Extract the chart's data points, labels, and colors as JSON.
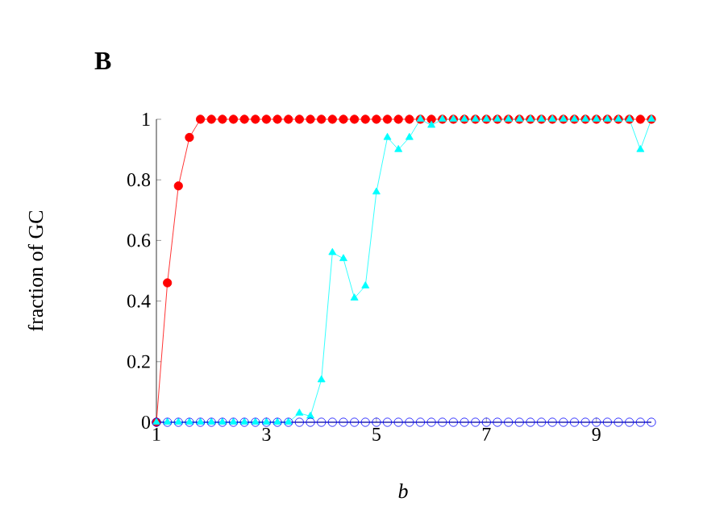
{
  "chart_data": {
    "type": "line",
    "title": "B",
    "xlabel": "b",
    "ylabel": "fraction of GC",
    "x": [
      1,
      1.2,
      1.4,
      1.6,
      1.8,
      2,
      2.2,
      2.4,
      2.6,
      2.8,
      3,
      3.2,
      3.4,
      3.6,
      3.8,
      4,
      4.2,
      4.4,
      4.6,
      4.8,
      5,
      5.2,
      5.4,
      5.6,
      5.8,
      6,
      6.2,
      6.4,
      6.6,
      6.8,
      7,
      7.2,
      7.4,
      7.6,
      7.8,
      8,
      8.2,
      8.4,
      8.6,
      8.8,
      9,
      9.2,
      9.4,
      9.6,
      9.8,
      10
    ],
    "series": [
      {
        "color": "#ff0000",
        "marker": "circle",
        "values": [
          0,
          0.46,
          0.78,
          0.94,
          1,
          1,
          1,
          1,
          1,
          1,
          1,
          1,
          1,
          1,
          1,
          1,
          1,
          1,
          1,
          1,
          1,
          1,
          1,
          1,
          1,
          1,
          1,
          1,
          1,
          1,
          1,
          1,
          1,
          1,
          1,
          1,
          1,
          1,
          1,
          1,
          1,
          1,
          1,
          1,
          1,
          1
        ]
      },
      {
        "color": "#00ffff",
        "marker": "triangle",
        "values": [
          0,
          0,
          0,
          0,
          0,
          0,
          0,
          0,
          0,
          0,
          0,
          0,
          0,
          0.03,
          0.02,
          0.14,
          0.56,
          0.54,
          0.41,
          0.45,
          0.76,
          0.94,
          0.9,
          0.94,
          1,
          0.98,
          1,
          1,
          1,
          1,
          1,
          1,
          1,
          1,
          1,
          1,
          1,
          1,
          1,
          1,
          1,
          1,
          1,
          1,
          0.9,
          1
        ]
      },
      {
        "color": "#0000ff",
        "marker": "open circle",
        "values": [
          0,
          0,
          0,
          0,
          0,
          0,
          0,
          0,
          0,
          0,
          0,
          0,
          0,
          0,
          0,
          0,
          0,
          0,
          0,
          0,
          0,
          0,
          0,
          0,
          0,
          0,
          0,
          0,
          0,
          0,
          0,
          0,
          0,
          0,
          0,
          0,
          0,
          0,
          0,
          0,
          0,
          0,
          0,
          0,
          0,
          0
        ]
      }
    ],
    "xlim": [
      1,
      10
    ],
    "ylim": [
      0,
      1
    ],
    "xticks": [
      1,
      3,
      5,
      7,
      9
    ],
    "yticks": [
      0,
      0.2,
      0.4,
      0.6,
      0.8,
      1
    ],
    "grid": false,
    "line_style": "solid"
  }
}
